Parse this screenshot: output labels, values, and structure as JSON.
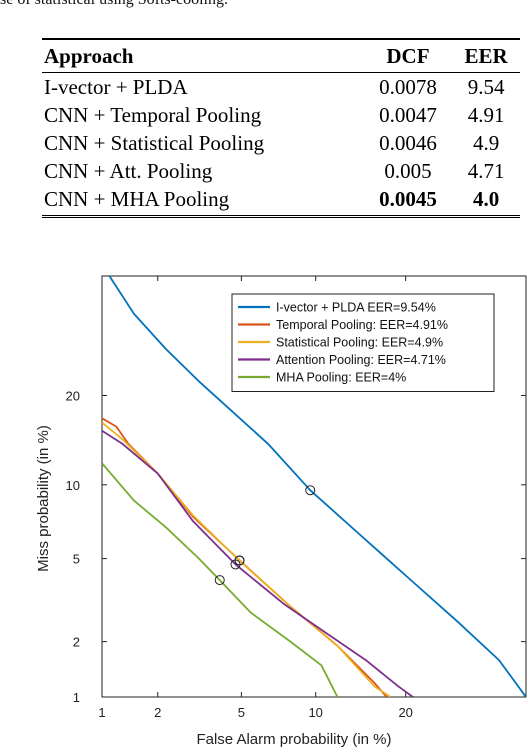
{
  "caption_fragment": "se of statistical using Softs-cooling.",
  "table": {
    "headers": [
      "Approach",
      "DCF",
      "EER"
    ],
    "rows": [
      {
        "approach": "I-vector + PLDA",
        "dcf": "0.0078",
        "eer": "9.54",
        "bold": false
      },
      {
        "approach": "CNN + Temporal Pooling",
        "dcf": "0.0047",
        "eer": "4.91",
        "bold": false
      },
      {
        "approach": "CNN + Statistical Pooling",
        "dcf": "0.0046",
        "eer": "4.9",
        "bold": false
      },
      {
        "approach": "CNN + Att. Pooling",
        "dcf": "0.005",
        "eer": "4.71",
        "bold": false
      },
      {
        "approach": "CNN + MHA Pooling",
        "dcf": "0.0045",
        "eer": "4.0",
        "bold": true
      }
    ]
  },
  "chart_data": {
    "type": "line",
    "title": "",
    "xlabel": "False Alarm probability (in %)",
    "ylabel": "Miss probability (in %)",
    "x_scale": "probit",
    "y_scale": "probit",
    "xlim": [
      1,
      40
    ],
    "ylim": [
      1,
      40
    ],
    "x_ticks": [
      1,
      2,
      5,
      10,
      20
    ],
    "y_ticks": [
      1,
      2,
      5,
      10,
      20
    ],
    "grid": false,
    "legend_position": "top-right",
    "series": [
      {
        "name": "I-vector + PLDA EER=9.54%",
        "color": "#0072BD",
        "eer": 9.54,
        "points": [
          [
            1.1,
            40
          ],
          [
            1.5,
            33
          ],
          [
            2.2,
            27
          ],
          [
            3.2,
            22
          ],
          [
            4.5,
            18
          ],
          [
            6.5,
            14
          ],
          [
            9.54,
            9.54
          ],
          [
            14,
            6.5
          ],
          [
            20,
            4.2
          ],
          [
            28,
            2.5
          ],
          [
            35,
            1.6
          ],
          [
            40,
            1.0
          ]
        ]
      },
      {
        "name": "Temporal Pooling: EER=4.91%",
        "color": "#D95319",
        "eer": 4.91,
        "points": [
          [
            1,
            17
          ],
          [
            1.2,
            16
          ],
          [
            1.4,
            14
          ],
          [
            2,
            11
          ],
          [
            3,
            7.5
          ],
          [
            4.91,
            4.91
          ],
          [
            8,
            3.0
          ],
          [
            12,
            1.9
          ],
          [
            16,
            1.2
          ],
          [
            17.5,
            1.0
          ]
        ]
      },
      {
        "name": "Statistical Pooling: EER=4.9%",
        "color": "#EDB120",
        "eer": 4.9,
        "points": [
          [
            1,
            16.5
          ],
          [
            1.3,
            14.5
          ],
          [
            2,
            11
          ],
          [
            3,
            7.6
          ],
          [
            4.9,
            4.9
          ],
          [
            8,
            3.0
          ],
          [
            12,
            1.9
          ],
          [
            16,
            1.15
          ],
          [
            18,
            1.0
          ]
        ]
      },
      {
        "name": "Attention Pooling: EER=4.71%",
        "color": "#7E2F8E",
        "eer": 4.71,
        "points": [
          [
            1,
            15.5
          ],
          [
            1.3,
            14
          ],
          [
            2,
            11
          ],
          [
            3,
            7.2
          ],
          [
            4.71,
            4.71
          ],
          [
            7.5,
            3.1
          ],
          [
            11,
            2.2
          ],
          [
            15,
            1.6
          ],
          [
            19,
            1.15
          ],
          [
            21,
            1.0
          ]
        ]
      },
      {
        "name": "MHA Pooling: EER=4%",
        "color": "#77AC30",
        "eer": 4.0,
        "points": [
          [
            1,
            12
          ],
          [
            1.5,
            8.7
          ],
          [
            2.2,
            6.8
          ],
          [
            3.2,
            5.0
          ],
          [
            4.0,
            4.0
          ],
          [
            5.5,
            2.8
          ],
          [
            8,
            2.0
          ],
          [
            10.5,
            1.5
          ],
          [
            12,
            1.0
          ]
        ]
      }
    ]
  }
}
